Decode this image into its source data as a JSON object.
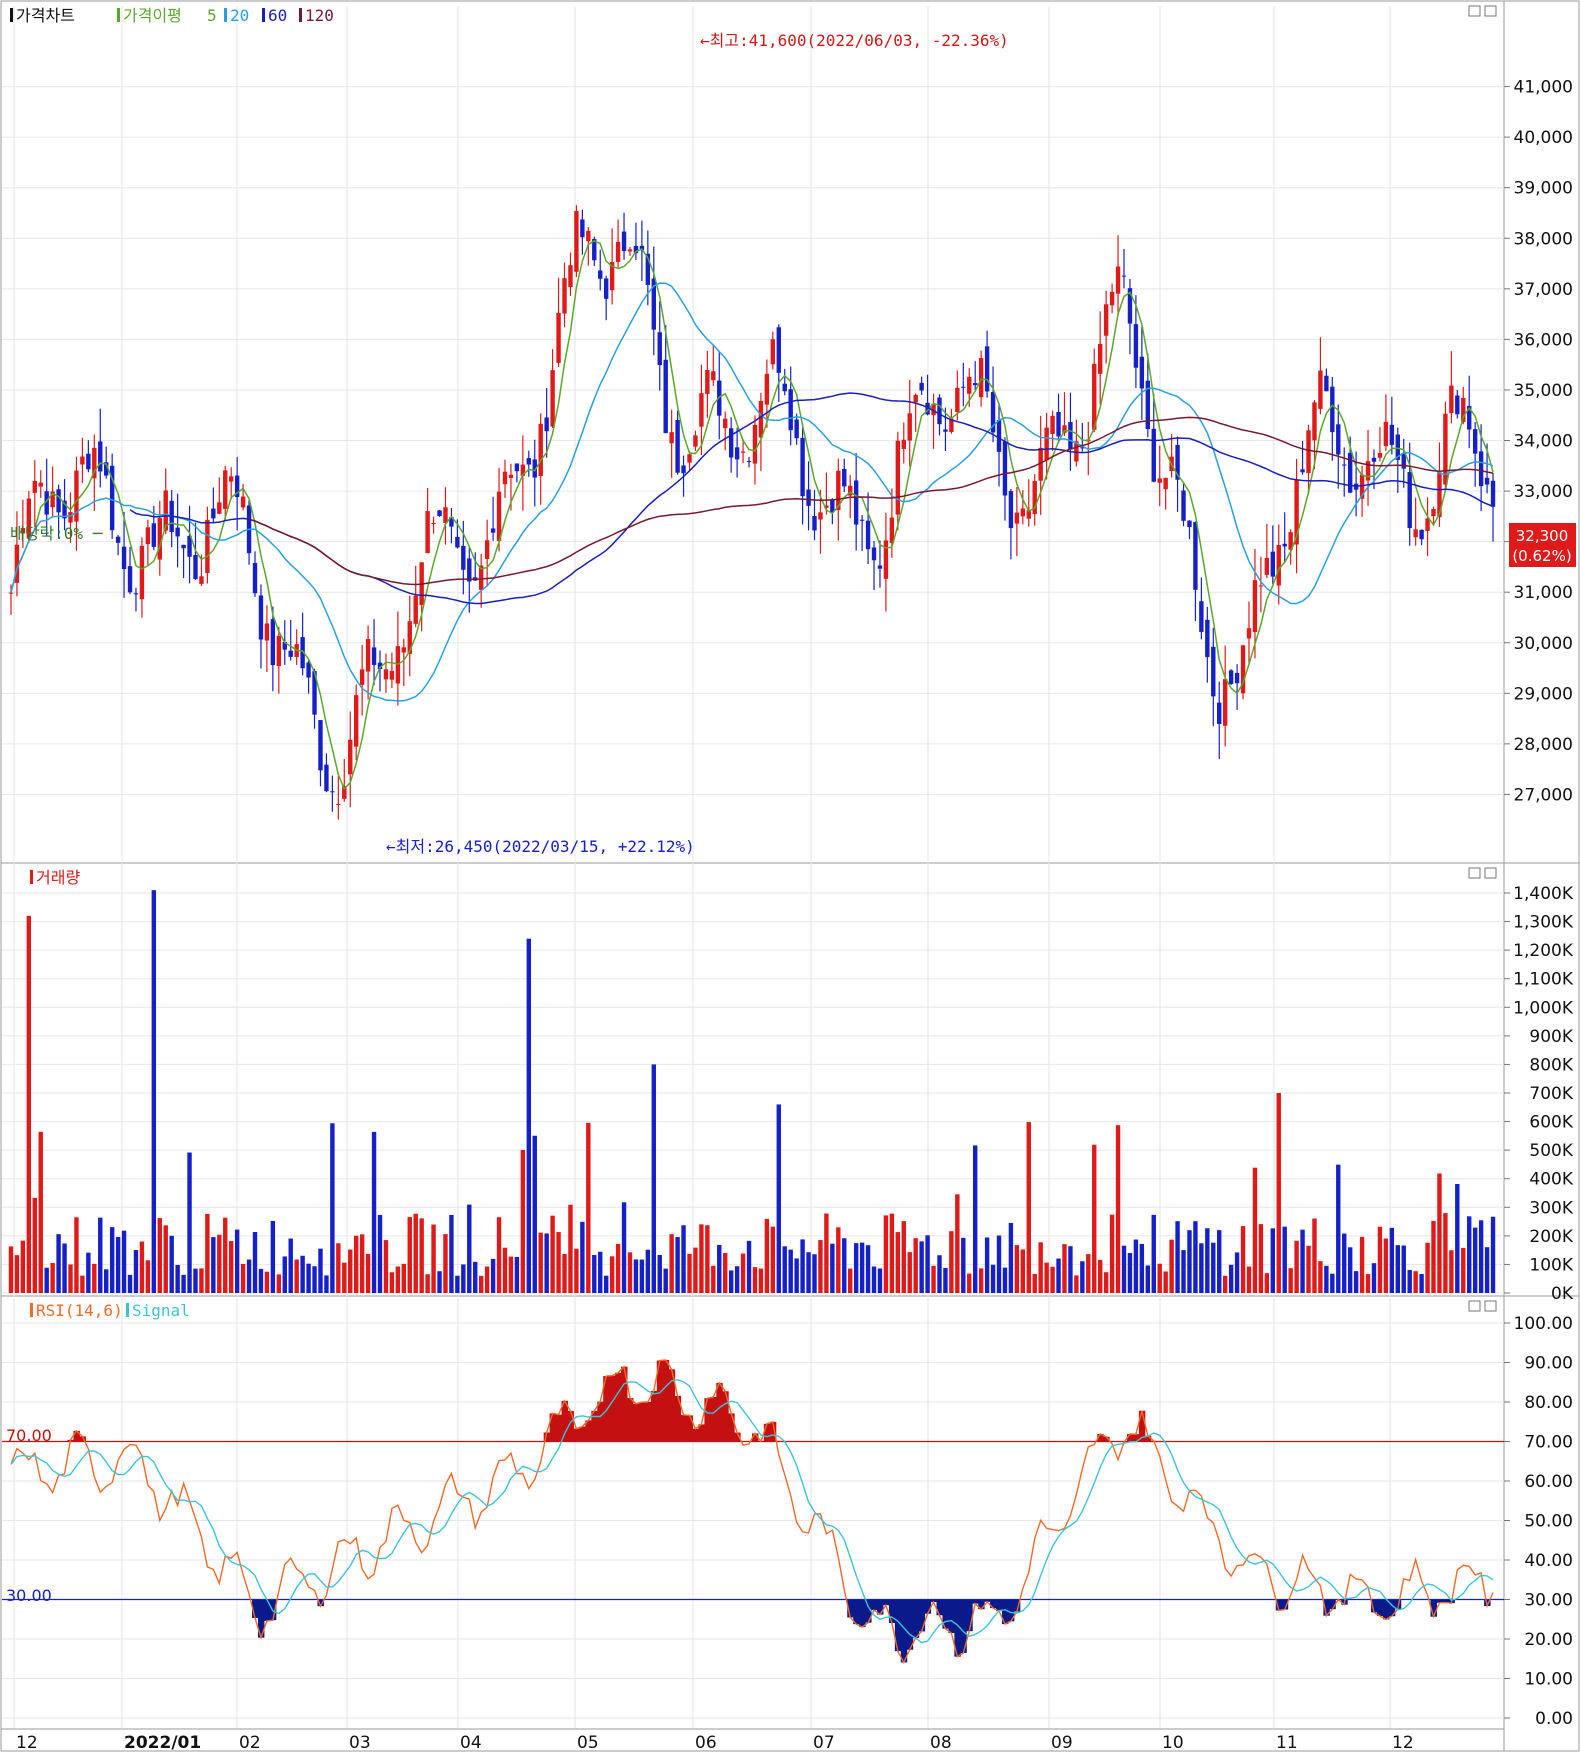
{
  "chart_data": [
    {
      "type": "candlestick",
      "legend": {
        "title": "가격차트",
        "ma_label": "가격이평",
        "ma_periods": [
          "5",
          "20",
          "60",
          "120"
        ]
      },
      "colors": {
        "up": "#e01919",
        "down": "#1520c8",
        "ma5": "#5aa82a",
        "ma20": "#29a0e0",
        "ma60": "#1a1fb8",
        "ma120": "#7a1830"
      },
      "ylim": [
        26000,
        42000
      ],
      "y_ticks": [
        27000,
        28000,
        29000,
        30000,
        31000,
        32000,
        33000,
        34000,
        35000,
        36000,
        37000,
        38000,
        39000,
        40000,
        41000
      ],
      "y_tick_labels": [
        "27,000",
        "28,000",
        "29,000",
        "30,000",
        "31,000",
        "32,000",
        "33,000",
        "34,000",
        "35,000",
        "36,000",
        "37,000",
        "38,000",
        "39,000",
        "40,000",
        "41,000"
      ],
      "current_price": "32,300",
      "current_change": "(0.62%)",
      "high_annotation": "←최고:41,600(2022/06/03, -22.36%)",
      "low_annotation": "←최저:26,450(2022/03/15, +22.12%)",
      "dividend_annotation": "배당락:0% ─",
      "monthly_close": [
        {
          "month": "2021/12",
          "close": 31000
        },
        {
          "month": "2022/01",
          "close": 33500
        },
        {
          "month": "2022/02",
          "close": 30500
        },
        {
          "month": "2022/03",
          "close": 28500
        },
        {
          "month": "2022/04",
          "close": 34000
        },
        {
          "month": "2022/05",
          "close": 37500
        },
        {
          "month": "2022/06",
          "close": 33500
        },
        {
          "month": "2022/07",
          "close": 33500
        },
        {
          "month": "2022/08",
          "close": 34000
        },
        {
          "month": "2022/09",
          "close": 35000
        },
        {
          "month": "2022/10",
          "close": 30000
        },
        {
          "month": "2022/11",
          "close": 35000
        },
        {
          "month": "2022/12",
          "close": 32300
        }
      ]
    },
    {
      "type": "bar",
      "title": "거래량",
      "ylim": [
        0,
        1400000
      ],
      "y_tick_labels": [
        "0K",
        "100K",
        "200K",
        "300K",
        "400K",
        "500K",
        "600K",
        "700K",
        "800K",
        "900K",
        "1,000K",
        "1,100K",
        "1,200K",
        "1,300K",
        "1,400K"
      ],
      "peaks": [
        {
          "month": "2021/12",
          "value": 1320000
        },
        {
          "month": "2022/01",
          "value": 1410000
        },
        {
          "month": "2022/04",
          "value": 1240000
        },
        {
          "month": "2022/05",
          "value": 800000
        },
        {
          "month": "2022/06",
          "value": 660000
        },
        {
          "month": "2022/10",
          "value": 700000
        }
      ]
    },
    {
      "type": "line",
      "series_labels": [
        "RSI(14,6)",
        "Signal"
      ],
      "colors": {
        "rsi": "#f06a28",
        "signal": "#3cc4d8",
        "overbought_fill": "#c41010",
        "oversold_fill": "#0a1a8a"
      },
      "ylim": [
        0,
        100
      ],
      "y_tick_labels": [
        "0.00",
        "10.00",
        "20.00",
        "30.00",
        "40.00",
        "50.00",
        "60.00",
        "70.00",
        "80.00",
        "90.00",
        "100.00"
      ],
      "overbought": 70,
      "oversold": 30,
      "overbought_label": "70.00",
      "oversold_label": "30.00",
      "approx_values": [
        {
          "month": "2021/12",
          "rsi": 62
        },
        {
          "month": "2022/01",
          "rsi": 66
        },
        {
          "month": "2022/02",
          "rsi": 28
        },
        {
          "month": "2022/03",
          "rsi": 45
        },
        {
          "month": "2022/04",
          "rsi": 60
        },
        {
          "month": "2022/05",
          "rsi": 87
        },
        {
          "month": "2022/06",
          "rsi": 75
        },
        {
          "month": "2022/07",
          "rsi": 22
        },
        {
          "month": "2022/08",
          "rsi": 25
        },
        {
          "month": "2022/09",
          "rsi": 76
        },
        {
          "month": "2022/10",
          "rsi": 38
        },
        {
          "month": "2022/11",
          "rsi": 30
        },
        {
          "month": "2022/12",
          "rsi": 35
        }
      ]
    }
  ],
  "x_axis": {
    "labels": [
      "12",
      "2022/01",
      "02",
      "03",
      "04",
      "05",
      "06",
      "07",
      "08",
      "09",
      "10",
      "11",
      "12"
    ]
  }
}
